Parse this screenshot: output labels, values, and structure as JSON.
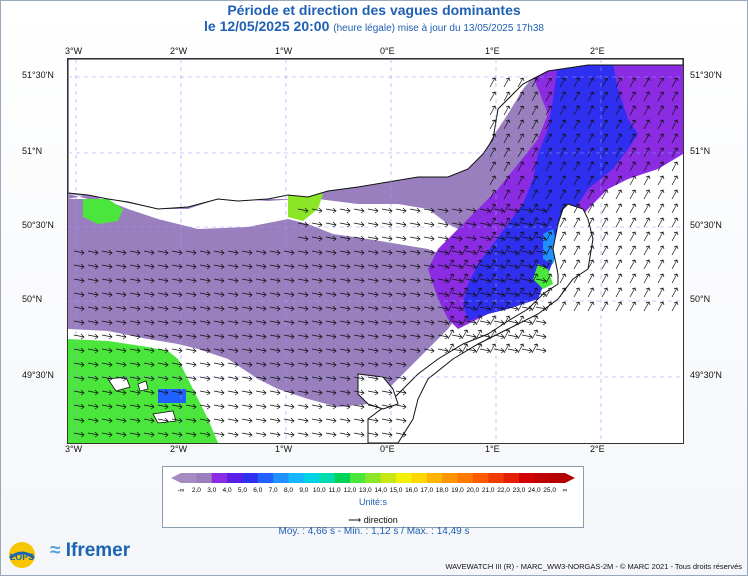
{
  "title": {
    "line1": "Période et direction des vagues dominantes",
    "line2_main": "le 12/05/2025 20:00",
    "line2_sub": "(heure légale) mise à jour du 13/05/2025 17h38"
  },
  "map": {
    "lon_ticks": [
      "3°W",
      "2°W",
      "1°W",
      "0°E",
      "1°E",
      "2°E"
    ],
    "lat_ticks": [
      "51°30'N",
      "51°N",
      "50°30'N",
      "50°N",
      "49°30'N"
    ],
    "colors": {
      "land": "#ffffff",
      "coast": "#111111",
      "grid": "#8fa0ff",
      "arrow": "#111111"
    }
  },
  "colorbar": {
    "labels": [
      "-∞",
      "2,0",
      "3,0",
      "4,0",
      "5,0",
      "6,0",
      "7,0",
      "8,0",
      "9,0",
      "10,0",
      "11,0",
      "12,0",
      "13,0",
      "14,0",
      "15,0",
      "16,0",
      "17,0",
      "18,0",
      "19,0",
      "20,0",
      "21,0",
      "22,0",
      "23,0",
      "24,0",
      "25,0",
      "∞"
    ],
    "colors": [
      "#a58cc0",
      "#9a7fbe",
      "#8b2be2",
      "#5a1fe6",
      "#2f2ff0",
      "#2060ff",
      "#1e90ff",
      "#15b8ff",
      "#00d2e6",
      "#00dcb0",
      "#00d25a",
      "#4be63c",
      "#8ce628",
      "#c8e614",
      "#f0f000",
      "#ffd700",
      "#ffb400",
      "#ff9600",
      "#ff7800",
      "#ff5a00",
      "#f03c00",
      "#e61e00",
      "#d20000",
      "#c00000",
      "#b40000"
    ],
    "unit_label": "Unité:s",
    "direction_label": "direction"
  },
  "stats": {
    "moy": "Moy. : 4,66 s",
    "min": "Min. : 1,12 s",
    "max": "Max. : 14,49 s"
  },
  "logos": {
    "lops": "LOPS",
    "ifremer": "Ifremer"
  },
  "credit": "WAVEWATCH III (R) - MARC_WW3-NORGAS-2M - © MARC 2021 - Tous droits réservés"
}
